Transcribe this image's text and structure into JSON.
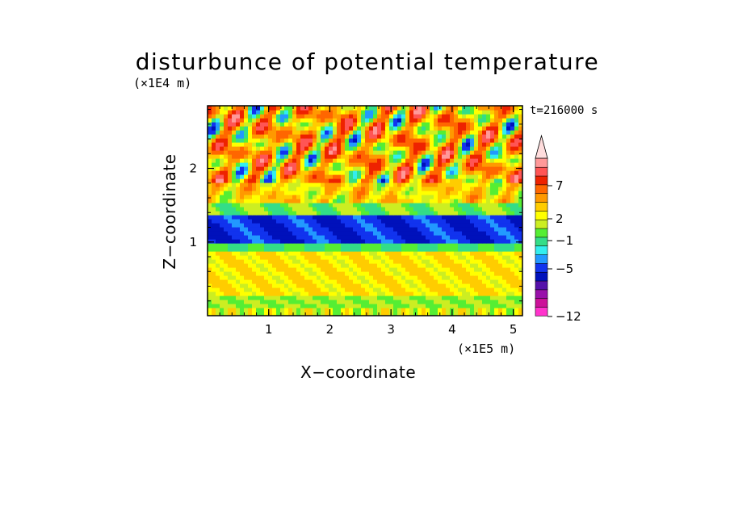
{
  "chart_data": {
    "type": "heatmap",
    "title": "disturbunce of potential temperature",
    "xlabel": "X−coordinate",
    "ylabel": "Z−coordinate",
    "x_unit": "(×1E5 m)",
    "y_unit": "(×1E4 m)",
    "time_label": "t=216000 s",
    "xlim": [
      0,
      5.15
    ],
    "ylim": [
      0,
      2.85
    ],
    "x_ticks": [
      "1",
      "2",
      "3",
      "4",
      "5"
    ],
    "y_ticks": [
      "1",
      "2"
    ],
    "colorbar": {
      "tick_labels": [
        "7",
        "2",
        "−1",
        "−5",
        "−12"
      ],
      "levels": [
        "< −12",
        "−12",
        "−10",
        "−8",
        "−6",
        "−5",
        "−4",
        "−3",
        "−2",
        "−1",
        "0",
        "1",
        "2",
        "3",
        "5",
        "7",
        "9",
        "11",
        "> 11"
      ],
      "colors": [
        "#ff33cc",
        "#cc1199",
        "#9911aa",
        "#5511aa",
        "#0011bb",
        "#1133ee",
        "#2299ff",
        "#33eeee",
        "#33dd88",
        "#55ee33",
        "#ccee22",
        "#ffff00",
        "#ffcc00",
        "#ff9900",
        "#ff6600",
        "#ee2200",
        "#ff5555",
        "#ff9999",
        "#ffdddd"
      ],
      "extend": "max"
    },
    "grid": false,
    "colors": {
      "band_negative": "#0011bb",
      "upper_positive": "#ff9900",
      "lower_positive": "#ffff00"
    }
  }
}
